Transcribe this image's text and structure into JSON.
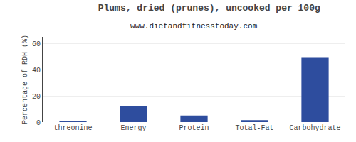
{
  "chart_data": {
    "type": "bar",
    "title": "Plums, dried (prunes), uncooked per 100g",
    "subtitle": "www.dietandfitnesstoday.com",
    "categories": [
      "threonine",
      "Energy",
      "Protein",
      "Total-Fat",
      "Carbohydrate"
    ],
    "values": [
      0.3,
      12.5,
      5.0,
      1.5,
      49.5
    ],
    "color": "#2e4d9e",
    "ylabel": "Percentage of RDH (%)",
    "ylim": [
      0,
      65
    ],
    "yticks": [
      0,
      20,
      40,
      60
    ],
    "grid": true
  }
}
